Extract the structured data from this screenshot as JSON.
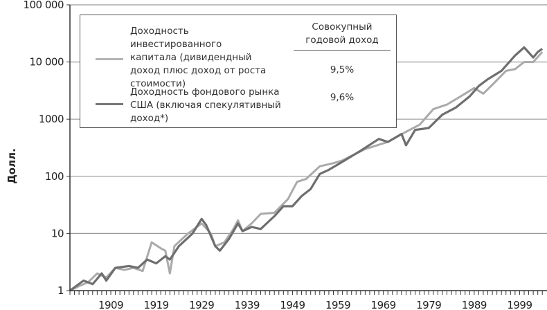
{
  "chart_data": {
    "type": "line",
    "title": "",
    "xlabel": "",
    "ylabel": "Долл.",
    "yscale": "log",
    "ylim": [
      1,
      100000
    ],
    "xlim": [
      1900,
      2004
    ],
    "ytick_labels": [
      "1",
      "10",
      "100",
      "1000",
      "10 000",
      "100 000"
    ],
    "ytick_values": [
      1,
      10,
      100,
      1000,
      10000,
      100000
    ],
    "xtick_labels": [
      "1909",
      "1919",
      "1929",
      "1939",
      "1949",
      "1959",
      "1969",
      "1979",
      "1989",
      "1999"
    ],
    "grid": true,
    "legend_placement": "top-left",
    "legend_header": "Совокупный годовой доход",
    "legend_header_lines": [
      "Совокупный",
      "годовой доход"
    ],
    "series": [
      {
        "name": "Доходность инвестированного капитала (дивидендный доход плюс доход от роста стоимости)",
        "name_lines": [
          "Доходность инвестированного",
          "капитала (дивидендный",
          "доход плюс доход от роста",
          "стоимости)"
        ],
        "annual_return": "9,5%",
        "color": "#aaaaaa",
        "x": [
          1900,
          1902,
          1904,
          1906,
          1908,
          1910,
          1912,
          1914,
          1916,
          1918,
          1920,
          1921,
          1922,
          1923,
          1926,
          1929,
          1931,
          1932,
          1934,
          1936,
          1937,
          1938,
          1940,
          1942,
          1945,
          1948,
          1950,
          1952,
          1955,
          1958,
          1960,
          1965,
          1970,
          1974,
          1977,
          1980,
          1983,
          1986,
          1989,
          1991,
          1993,
          1996,
          1998,
          2000,
          2002,
          2004
        ],
        "values": [
          1,
          1.2,
          1.4,
          2,
          1.7,
          2.5,
          2.3,
          2.5,
          2.2,
          7,
          5.5,
          5,
          2,
          6,
          10,
          15,
          10,
          6,
          7,
          12,
          17,
          11,
          15,
          22,
          23,
          40,
          80,
          90,
          150,
          170,
          190,
          300,
          400,
          600,
          800,
          1500,
          1800,
          2500,
          3500,
          2800,
          4000,
          7000,
          7500,
          10000,
          10000,
          15000
        ]
      },
      {
        "name": "Доходность фондового рынка США (включая спекулятивный доход*)",
        "name_lines": [
          "Доходность фондового рынка",
          "США (включая спекулятивный",
          "доход*)"
        ],
        "annual_return": "9,6%",
        "color": "#6e6e6e",
        "x": [
          1900,
          1903,
          1905,
          1907,
          1908,
          1910,
          1913,
          1915,
          1917,
          1919,
          1921,
          1922,
          1924,
          1927,
          1929,
          1930,
          1932,
          1933,
          1935,
          1937,
          1938,
          1940,
          1942,
          1945,
          1947,
          1949,
          1951,
          1953,
          1955,
          1957,
          1960,
          1964,
          1968,
          1970,
          1973,
          1974,
          1976,
          1979,
          1982,
          1985,
          1988,
          1990,
          1992,
          1995,
          1998,
          2000,
          2002,
          2003,
          2004
        ],
        "values": [
          1,
          1.5,
          1.3,
          2,
          1.5,
          2.5,
          2.7,
          2.5,
          3.5,
          3,
          4,
          3.5,
          6,
          10,
          18,
          14,
          6,
          5,
          8,
          15,
          11,
          13,
          12,
          20,
          30,
          30,
          45,
          60,
          110,
          130,
          180,
          280,
          450,
          400,
          550,
          350,
          650,
          700,
          1200,
          1600,
          2500,
          3800,
          5000,
          7000,
          13000,
          18000,
          12000,
          15000,
          17000
        ]
      }
    ]
  }
}
